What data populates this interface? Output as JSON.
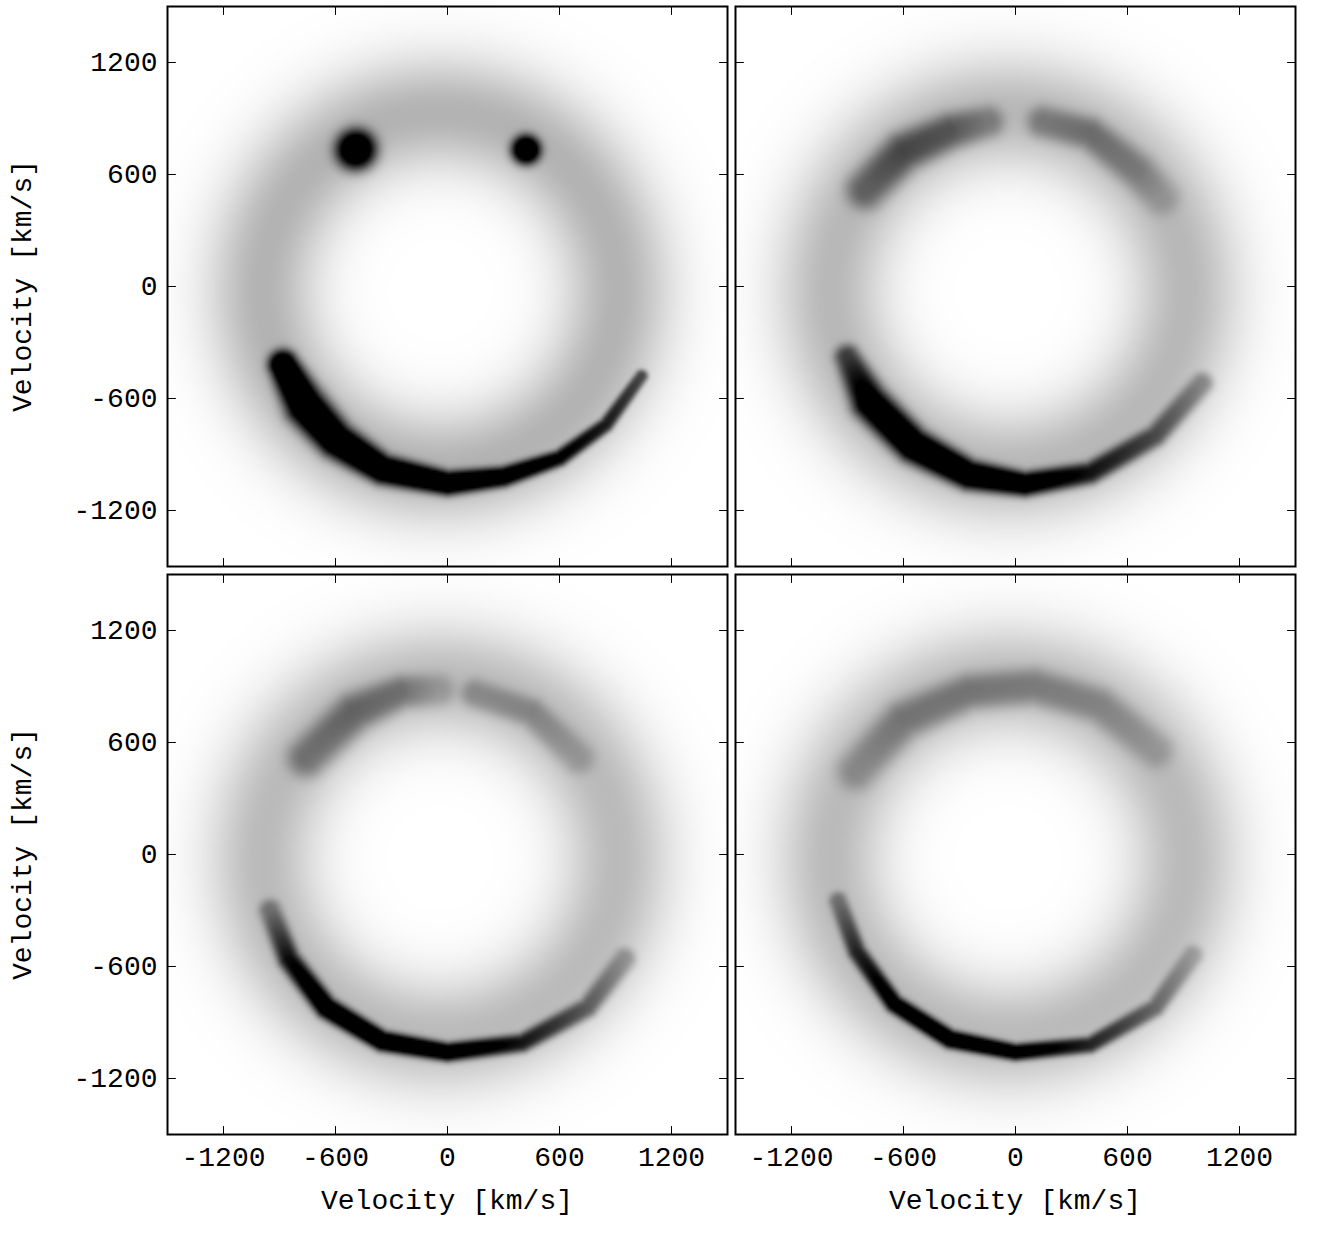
{
  "chart_data": [
    {
      "type": "heatmap",
      "ylabel": "Velocity [km/s]",
      "xlim": [
        -1500,
        1500
      ],
      "ylim": [
        -1500,
        1500
      ],
      "xticks": [
        -1200,
        -600,
        0,
        600,
        1200
      ],
      "yticks": [
        -1200,
        -600,
        0,
        600,
        1200
      ],
      "tick_labels": "y",
      "colors": [
        "#ffffff",
        "#000000"
      ],
      "color_range": [
        0,
        1
      ],
      "ring": {
        "center": [
          -40,
          -20
        ],
        "radius": 950,
        "width": 300,
        "intensity": 0.3
      },
      "spots": [
        {
          "x": -489,
          "y": 732,
          "radius": 110,
          "intensity": 1.0
        },
        {
          "x": 421,
          "y": 732,
          "radius": 80,
          "intensity": 1.0
        }
      ],
      "curves": [
        [
          [
            -880,
            -420,
            80,
            1.0
          ],
          [
            -760,
            -640,
            110,
            1.0
          ],
          [
            -600,
            -820,
            100,
            1.0
          ],
          [
            -350,
            -980,
            80,
            1.0
          ],
          [
            0,
            -1055,
            65,
            1.0
          ],
          [
            300,
            -1020,
            55,
            0.9
          ],
          [
            600,
            -920,
            45,
            0.8
          ],
          [
            850,
            -740,
            40,
            0.7
          ],
          [
            1040,
            -480,
            35,
            0.55
          ]
        ]
      ]
    },
    {
      "type": "heatmap",
      "xlim": [
        -1500,
        1500
      ],
      "ylim": [
        -1500,
        1500
      ],
      "xticks": [
        -1200,
        -600,
        0,
        600,
        1200
      ],
      "yticks": [
        -1200,
        -600,
        0,
        600,
        1200
      ],
      "tick_labels": false,
      "colors": [
        "#ffffff",
        "#000000"
      ],
      "color_range": [
        0,
        1
      ],
      "ring": {
        "center": [
          -40,
          -20
        ],
        "radius": 950,
        "width": 300,
        "intensity": 0.28
      },
      "spots": [],
      "curves": [
        [
          [
            -800,
            520,
            110,
            0.35
          ],
          [
            -600,
            720,
            110,
            0.45
          ],
          [
            -350,
            830,
            100,
            0.4
          ],
          [
            -150,
            880,
            90,
            0.25
          ]
        ],
        [
          [
            150,
            880,
            90,
            0.25
          ],
          [
            400,
            820,
            90,
            0.3
          ],
          [
            650,
            620,
            100,
            0.25
          ],
          [
            780,
            480,
            100,
            0.15
          ]
        ],
        [
          [
            -900,
            -380,
            70,
            0.5
          ],
          [
            -780,
            -620,
            100,
            0.9
          ],
          [
            -550,
            -850,
            95,
            1.0
          ],
          [
            -250,
            -1010,
            80,
            1.0
          ],
          [
            50,
            -1060,
            65,
            0.95
          ],
          [
            400,
            -1000,
            60,
            0.7
          ],
          [
            750,
            -800,
            60,
            0.5
          ],
          [
            1000,
            -520,
            60,
            0.3
          ]
        ]
      ]
    },
    {
      "type": "heatmap",
      "xlabel": "Velocity [km/s]",
      "ylabel": "Velocity [km/s]",
      "xlim": [
        -1500,
        1500
      ],
      "ylim": [
        -1500,
        1500
      ],
      "xticks": [
        -1200,
        -600,
        0,
        600,
        1200
      ],
      "yticks": [
        -1200,
        -600,
        0,
        600,
        1200
      ],
      "colors": [
        "#ffffff",
        "#000000"
      ],
      "color_range": [
        0,
        1
      ],
      "ring": {
        "center": [
          -40,
          -20
        ],
        "radius": 950,
        "width": 300,
        "intensity": 0.27
      },
      "spots": [],
      "curves": [
        [
          [
            -750,
            520,
            110,
            0.3
          ],
          [
            -500,
            760,
            110,
            0.35
          ],
          [
            -250,
            870,
            90,
            0.3
          ],
          [
            -50,
            880,
            90,
            0.15
          ]
        ],
        [
          [
            150,
            860,
            80,
            0.2
          ],
          [
            450,
            760,
            80,
            0.22
          ],
          [
            700,
            520,
            90,
            0.15
          ]
        ],
        [
          [
            -950,
            -300,
            60,
            0.3
          ],
          [
            -850,
            -560,
            60,
            0.7
          ],
          [
            -650,
            -820,
            60,
            0.95
          ],
          [
            -350,
            -1000,
            55,
            1.0
          ],
          [
            0,
            -1060,
            50,
            0.95
          ],
          [
            400,
            -1010,
            50,
            0.7
          ],
          [
            750,
            -820,
            55,
            0.45
          ],
          [
            950,
            -560,
            60,
            0.25
          ]
        ]
      ]
    },
    {
      "type": "heatmap",
      "xlabel": "Velocity [km/s]",
      "xlim": [
        -1500,
        1500
      ],
      "ylim": [
        -1500,
        1500
      ],
      "xticks": [
        -1200,
        -600,
        0,
        600,
        1200
      ],
      "yticks": [
        -1200,
        -600,
        0,
        600,
        1200
      ],
      "tick_labels": "x",
      "colors": [
        "#ffffff",
        "#000000"
      ],
      "color_range": [
        0,
        1
      ],
      "ring": {
        "center": [
          -40,
          -20
        ],
        "radius": 950,
        "width": 300,
        "intensity": 0.27
      },
      "spots": [],
      "curves": [
        [
          [
            -850,
            450,
            110,
            0.2
          ],
          [
            -600,
            720,
            110,
            0.28
          ],
          [
            -250,
            870,
            100,
            0.28
          ],
          [
            100,
            900,
            100,
            0.25
          ],
          [
            450,
            800,
            100,
            0.22
          ],
          [
            750,
            560,
            100,
            0.15
          ]
        ],
        [
          [
            -950,
            -250,
            50,
            0.3
          ],
          [
            -850,
            -520,
            50,
            0.6
          ],
          [
            -650,
            -800,
            50,
            0.85
          ],
          [
            -350,
            -990,
            50,
            0.95
          ],
          [
            0,
            -1060,
            45,
            0.9
          ],
          [
            400,
            -1020,
            45,
            0.65
          ],
          [
            750,
            -820,
            50,
            0.4
          ],
          [
            950,
            -540,
            55,
            0.2
          ]
        ]
      ]
    }
  ]
}
